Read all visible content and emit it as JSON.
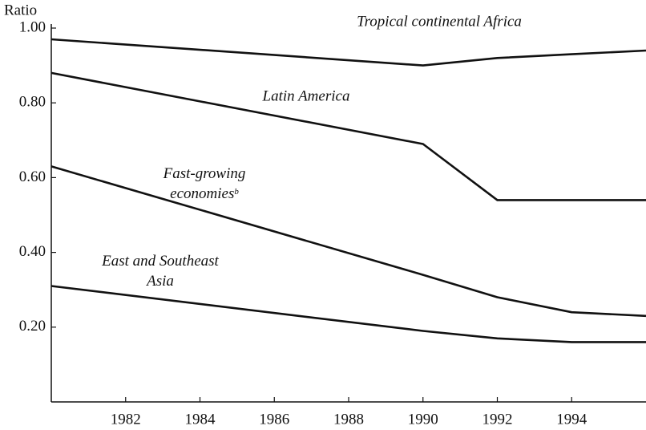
{
  "chart_data": {
    "type": "line",
    "y_label": "Ratio",
    "x": [
      1980,
      1990,
      1992,
      1994,
      1996
    ],
    "series": [
      {
        "name": "Tropical continental Africa",
        "color": "#111111",
        "values": [
          0.97,
          0.9,
          0.92,
          0.93,
          0.94
        ]
      },
      {
        "name": "Latin America",
        "color": "#111111",
        "values": [
          0.88,
          0.69,
          0.54,
          0.54,
          0.54
        ]
      },
      {
        "name": "Fast-growing economies",
        "footnote_marker": "b",
        "color": "#111111",
        "values": [
          0.63,
          0.34,
          0.28,
          0.24,
          0.23
        ]
      },
      {
        "name": "East and Southeast Asia",
        "color": "#111111",
        "values": [
          0.31,
          0.19,
          0.17,
          0.16,
          0.16
        ]
      }
    ],
    "xlim": [
      1980,
      1996
    ],
    "xticks": [
      1982,
      1984,
      1986,
      1988,
      1990,
      1992,
      1994
    ],
    "ylim": [
      0,
      1
    ],
    "yticks": [
      {
        "value": 0.2,
        "label": "0.20"
      },
      {
        "value": 0.4,
        "label": "0.40"
      },
      {
        "value": 0.6,
        "label": "0.60"
      },
      {
        "value": 0.8,
        "label": "0.80"
      },
      {
        "value": 1,
        "label": "1.00"
      }
    ],
    "grid": false
  }
}
